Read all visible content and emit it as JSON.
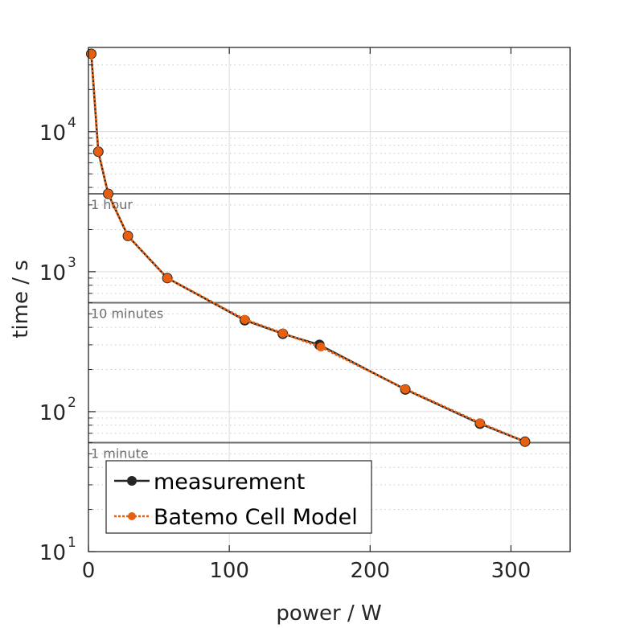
{
  "chart_data": {
    "type": "line",
    "xlabel": "power / W",
    "ylabel": "time / s",
    "xlim": [
      0,
      342
    ],
    "ylim": [
      10,
      40000
    ],
    "yscale": "log",
    "grid": true,
    "xticks": [
      0,
      100,
      200,
      300
    ],
    "xtick_labels": [
      "0",
      "100",
      "200",
      "300"
    ],
    "yticks": [
      10,
      100,
      1000,
      10000
    ],
    "ytick_labels": [
      [
        "10",
        "1"
      ],
      [
        "10",
        "2"
      ],
      [
        "10",
        "3"
      ],
      [
        "10",
        "4"
      ]
    ],
    "legend_position": "bottom-left",
    "reference_lines": [
      {
        "value": 3600,
        "label": "1 hour"
      },
      {
        "value": 600,
        "label": "10 minutes"
      },
      {
        "value": 60,
        "label": "1 minute"
      }
    ],
    "series": [
      {
        "name": "measurement",
        "color": "#262626",
        "x": [
          2,
          7,
          14,
          28,
          56,
          111,
          138,
          164,
          225,
          278,
          310
        ],
        "y": [
          36000,
          7200,
          3600,
          1800,
          900,
          450,
          360,
          300,
          144,
          82,
          61
        ]
      },
      {
        "name": "Batemo Cell Model",
        "color": "#e8600f",
        "x": [
          2,
          7,
          14,
          28,
          56,
          111,
          138,
          165,
          225,
          278,
          310
        ],
        "y": [
          36000,
          7200,
          3600,
          1800,
          900,
          455,
          363,
          290,
          145,
          83,
          61
        ]
      }
    ]
  }
}
